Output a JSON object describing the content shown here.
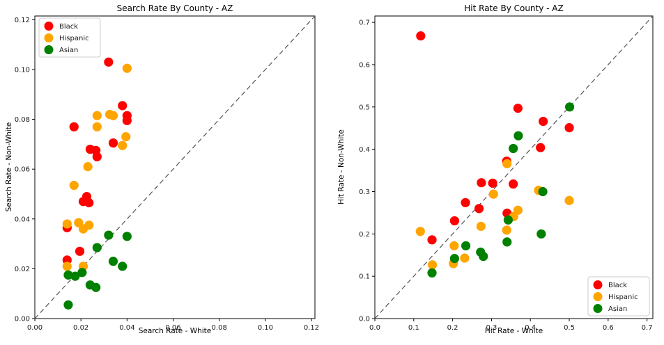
{
  "figure": {
    "background": "#ffffff"
  },
  "colors": {
    "black_series": "#ff0000",
    "hispanic_series": "#ffa500",
    "asian_series": "#008000",
    "diagonal_line": "#555555",
    "axis": "#000000",
    "legend_border": "#cccccc"
  },
  "chart_data": [
    {
      "type": "scatter",
      "title": "Search Rate By County - AZ",
      "xlabel": "Search Rate - White",
      "ylabel": "Search Rate - Non-White",
      "xlim": [
        0,
        0.1215
      ],
      "ylim": [
        0,
        0.1215
      ],
      "grid": false,
      "diagonal": {
        "shown": true,
        "style": "dashed",
        "color": "#555555",
        "meaning": "y = x reference line"
      },
      "xticks": {
        "values": [
          0,
          0.02,
          0.04,
          0.06,
          0.08,
          0.1,
          0.12
        ],
        "labels": [
          "0.00",
          "0.02",
          "0.04",
          "0.06",
          "0.08",
          "0.10",
          "0.12"
        ]
      },
      "yticks": {
        "values": [
          0,
          0.02,
          0.04,
          0.06,
          0.08,
          0.1,
          0.12
        ],
        "labels": [
          "0.00",
          "0.02",
          "0.04",
          "0.06",
          "0.08",
          "0.10",
          "0.12"
        ]
      },
      "legend": {
        "position": "upper left",
        "entries": [
          "Black",
          "Hispanic",
          "Asian"
        ]
      },
      "series": [
        {
          "name": "Black",
          "color": "#ff0000",
          "points": [
            [
              0.032,
              0.103
            ],
            [
              0.038,
              0.0855
            ],
            [
              0.04,
              0.0815
            ],
            [
              0.04,
              0.0795
            ],
            [
              0.017,
              0.077
            ],
            [
              0.034,
              0.0705
            ],
            [
              0.024,
              0.068
            ],
            [
              0.0265,
              0.0675
            ],
            [
              0.027,
              0.065
            ],
            [
              0.0225,
              0.049
            ],
            [
              0.021,
              0.047
            ],
            [
              0.0235,
              0.0465
            ],
            [
              0.014,
              0.0365
            ],
            [
              0.0195,
              0.027
            ],
            [
              0.014,
              0.0235
            ]
          ]
        },
        {
          "name": "Hispanic",
          "color": "#ffa500",
          "points": [
            [
              0.04,
              0.1005
            ],
            [
              0.0325,
              0.082
            ],
            [
              0.034,
              0.0815
            ],
            [
              0.027,
              0.0815
            ],
            [
              0.027,
              0.077
            ],
            [
              0.0395,
              0.073
            ],
            [
              0.038,
              0.0695
            ],
            [
              0.023,
              0.061
            ],
            [
              0.017,
              0.0535
            ],
            [
              0.019,
              0.0385
            ],
            [
              0.014,
              0.038
            ],
            [
              0.0235,
              0.0375
            ],
            [
              0.021,
              0.036
            ],
            [
              0.014,
              0.021
            ],
            [
              0.021,
              0.021
            ]
          ]
        },
        {
          "name": "Asian",
          "color": "#008000",
          "points": [
            [
              0.032,
              0.0335
            ],
            [
              0.04,
              0.033
            ],
            [
              0.027,
              0.0285
            ],
            [
              0.034,
              0.023
            ],
            [
              0.038,
              0.021
            ],
            [
              0.0205,
              0.0185
            ],
            [
              0.0145,
              0.0175
            ],
            [
              0.0175,
              0.017
            ],
            [
              0.024,
              0.0135
            ],
            [
              0.0265,
              0.0125
            ],
            [
              0.0145,
              0.0055
            ]
          ]
        }
      ]
    },
    {
      "type": "scatter",
      "title": "Hit Rate By County - AZ",
      "xlabel": "Hit Rate - White",
      "ylabel": "Hit Rate - Non-White",
      "xlim": [
        0,
        0.715
      ],
      "ylim": [
        0,
        0.715
      ],
      "grid": false,
      "diagonal": {
        "shown": true,
        "style": "dashed",
        "color": "#555555",
        "meaning": "y = x reference line"
      },
      "xticks": {
        "values": [
          0,
          0.1,
          0.2,
          0.3,
          0.4,
          0.5,
          0.6,
          0.7
        ],
        "labels": [
          "0.0",
          "0.1",
          "0.2",
          "0.3",
          "0.4",
          "0.5",
          "0.6",
          "0.7"
        ]
      },
      "yticks": {
        "values": [
          0,
          0.1,
          0.2,
          0.3,
          0.4,
          0.5,
          0.6,
          0.7
        ],
        "labels": [
          "0.0",
          "0.1",
          "0.2",
          "0.3",
          "0.4",
          "0.5",
          "0.6",
          "0.7"
        ]
      },
      "legend": {
        "position": "lower right",
        "entries": [
          "Black",
          "Hispanic",
          "Asian"
        ]
      },
      "series": [
        {
          "name": "Black",
          "color": "#ff0000",
          "points": [
            [
              0.118,
              0.668
            ],
            [
              0.368,
              0.497
            ],
            [
              0.433,
              0.466
            ],
            [
              0.5,
              0.451
            ],
            [
              0.426,
              0.404
            ],
            [
              0.339,
              0.372
            ],
            [
              0.274,
              0.321
            ],
            [
              0.303,
              0.32
            ],
            [
              0.356,
              0.318
            ],
            [
              0.233,
              0.274
            ],
            [
              0.268,
              0.26
            ],
            [
              0.34,
              0.249
            ],
            [
              0.205,
              0.231
            ],
            [
              0.147,
              0.186
            ]
          ]
        },
        {
          "name": "Hispanic",
          "color": "#ffa500",
          "points": [
            [
              0.34,
              0.366
            ],
            [
              0.421,
              0.303
            ],
            [
              0.305,
              0.294
            ],
            [
              0.5,
              0.279
            ],
            [
              0.368,
              0.256
            ],
            [
              0.357,
              0.241
            ],
            [
              0.273,
              0.218
            ],
            [
              0.339,
              0.209
            ],
            [
              0.117,
              0.206
            ],
            [
              0.204,
              0.172
            ],
            [
              0.231,
              0.143
            ],
            [
              0.202,
              0.13
            ],
            [
              0.148,
              0.127
            ]
          ]
        },
        {
          "name": "Asian",
          "color": "#008000",
          "points": [
            [
              0.501,
              0.5
            ],
            [
              0.369,
              0.432
            ],
            [
              0.356,
              0.402
            ],
            [
              0.432,
              0.3
            ],
            [
              0.343,
              0.233
            ],
            [
              0.428,
              0.2
            ],
            [
              0.34,
              0.181
            ],
            [
              0.234,
              0.172
            ],
            [
              0.272,
              0.157
            ],
            [
              0.279,
              0.147
            ],
            [
              0.205,
              0.142
            ],
            [
              0.147,
              0.108
            ]
          ]
        }
      ]
    }
  ]
}
